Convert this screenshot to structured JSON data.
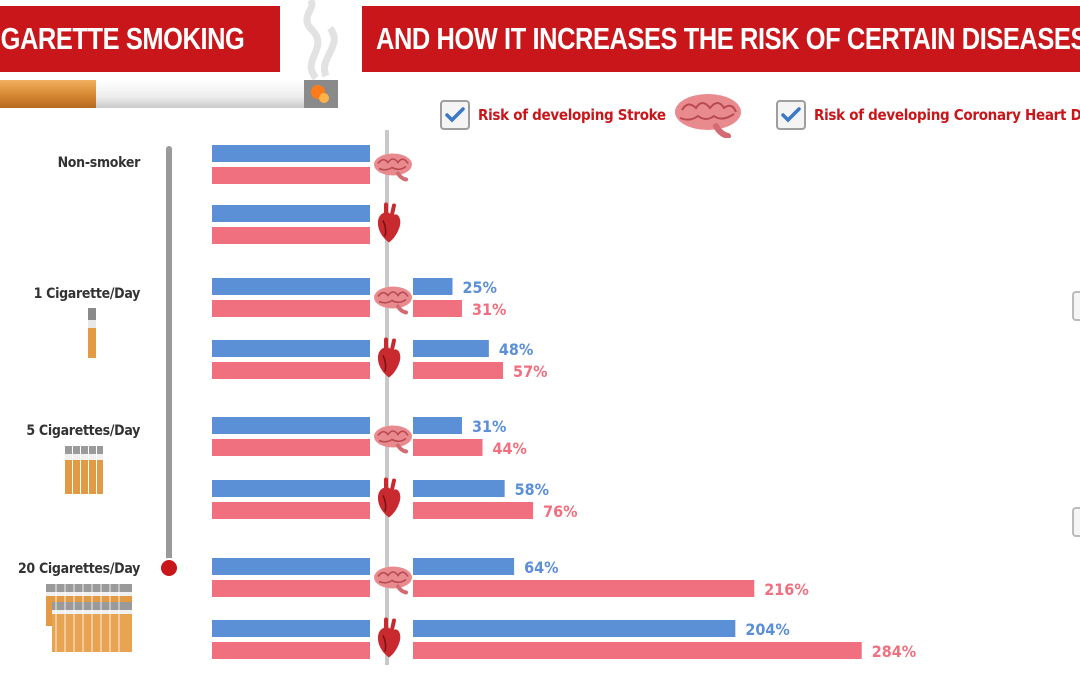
{
  "header": {
    "title_left": "CIGARETTE SMOKING",
    "title_right": "AND HOW IT INCREASES THE RISK OF CERTAIN DISEASES"
  },
  "legend": {
    "stroke_label": "Risk of developing Stroke",
    "chd_label": "Risk of developing Coronary Heart Disease",
    "stroke_checked": true,
    "chd_checked": true
  },
  "slider": {
    "selected": "20 Cigarettes/Day"
  },
  "colors": {
    "blue": "#5b8fd6",
    "pink": "#f07080",
    "red": "#c8161b",
    "axis": "#c8c8c8"
  },
  "chart_data": {
    "type": "bar",
    "orientation": "horizontal",
    "value_unit": "%",
    "groups": [
      {
        "label": "Non-smoker",
        "icon": "none",
        "rows": [
          {
            "disease": "Stroke",
            "icon": "brain-icon",
            "values": [
              null,
              null
            ],
            "labels": [
              "",
              ""
            ]
          },
          {
            "disease": "Coronary Heart Disease",
            "icon": "heart-icon",
            "values": [
              null,
              null
            ],
            "labels": [
              "",
              ""
            ]
          }
        ]
      },
      {
        "label": "1 Cigarette/Day",
        "icon": "single-cigarette-icon",
        "rows": [
          {
            "disease": "Stroke",
            "icon": "brain-icon",
            "values": [
              25,
              31
            ],
            "labels": [
              "25%",
              "31%"
            ]
          },
          {
            "disease": "Coronary Heart Disease",
            "icon": "heart-icon",
            "values": [
              48,
              57
            ],
            "labels": [
              "48%",
              "57%"
            ]
          }
        ]
      },
      {
        "label": "5 Cigarettes/Day",
        "icon": "cigarette-pack-icon",
        "rows": [
          {
            "disease": "Stroke",
            "icon": "brain-icon",
            "values": [
              31,
              44
            ],
            "labels": [
              "31%",
              "44%"
            ]
          },
          {
            "disease": "Coronary Heart Disease",
            "icon": "heart-icon",
            "values": [
              58,
              76
            ],
            "labels": [
              "58%",
              "76%"
            ]
          }
        ]
      },
      {
        "label": "20 Cigarettes/Day",
        "icon": "cigarette-packs-icon",
        "rows": [
          {
            "disease": "Stroke",
            "icon": "brain-icon",
            "values": [
              64,
              216
            ],
            "labels": [
              "64%",
              "216%"
            ]
          },
          {
            "disease": "Coronary Heart Disease",
            "icon": "heart-icon",
            "values": [
              204,
              284
            ],
            "labels": [
              "204%",
              "284%"
            ]
          }
        ]
      }
    ]
  }
}
